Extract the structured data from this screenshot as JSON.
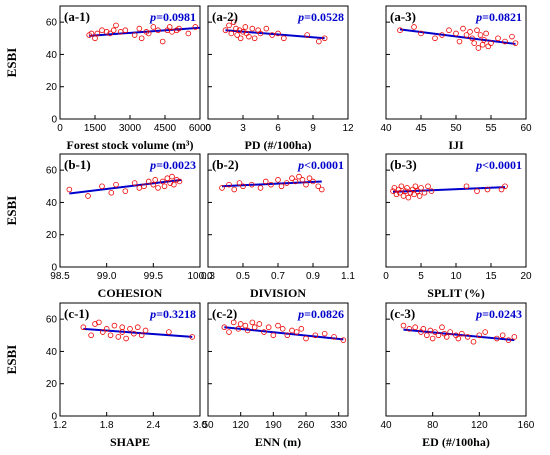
{
  "figure": {
    "y_axis_label": "ESBI",
    "colors": {
      "points": "#ee0000",
      "line": "#0000cc",
      "pvalue": "#0000cc",
      "axis": "#000000"
    }
  },
  "chart_data": [
    {
      "id": "a1",
      "panel_label": "(a-1)",
      "p_prefix": "p",
      "p_value": "=0.0981",
      "type": "scatter",
      "xlabel": "Forest stock volume (m³)",
      "ylabel": "ESBI",
      "xlim": [
        0,
        6000
      ],
      "x_ticks": [
        0,
        1500,
        3000,
        4500,
        6000
      ],
      "x_tick_labels": [
        "0",
        "1500",
        "3000",
        "4500",
        "6000"
      ],
      "ylim": [
        0,
        70
      ],
      "y_ticks": [
        0,
        20,
        40,
        60
      ],
      "y_tick_labels": [
        "0",
        "20",
        "40",
        "60"
      ],
      "points": [
        [
          1250,
          52
        ],
        [
          1350,
          53
        ],
        [
          1500,
          50
        ],
        [
          1600,
          53
        ],
        [
          1800,
          55
        ],
        [
          2000,
          54
        ],
        [
          2150,
          53
        ],
        [
          2300,
          55
        ],
        [
          2400,
          58
        ],
        [
          2600,
          54
        ],
        [
          2800,
          55
        ],
        [
          3200,
          52
        ],
        [
          3400,
          56
        ],
        [
          3500,
          50
        ],
        [
          3700,
          54
        ],
        [
          3800,
          53
        ],
        [
          4000,
          57
        ],
        [
          4200,
          55
        ],
        [
          4400,
          48
        ],
        [
          4600,
          55
        ],
        [
          4700,
          57
        ],
        [
          4800,
          54
        ],
        [
          5000,
          55
        ],
        [
          5100,
          56
        ],
        [
          5500,
          53
        ],
        [
          5800,
          57
        ]
      ],
      "fit": [
        [
          1250,
          51.5
        ],
        [
          6000,
          56.5
        ]
      ]
    },
    {
      "id": "a2",
      "panel_label": "(a-2)",
      "p_prefix": "p",
      "p_value": "=0.0528",
      "type": "scatter",
      "xlabel": "PD (#/100ha)",
      "ylabel": "ESBI",
      "xlim": [
        0,
        12
      ],
      "x_ticks": [
        0,
        3,
        6,
        9,
        12
      ],
      "x_tick_labels": [
        "0",
        "3",
        "6",
        "9",
        "12"
      ],
      "ylim": [
        0,
        70
      ],
      "y_ticks": [
        0,
        20,
        40,
        60
      ],
      "y_tick_labels": [
        "0",
        "20",
        "40",
        "60"
      ],
      "points": [
        [
          1.5,
          55
        ],
        [
          1.8,
          58
        ],
        [
          2.0,
          53
        ],
        [
          2.2,
          60
        ],
        [
          2.4,
          56
        ],
        [
          2.5,
          52
        ],
        [
          2.7,
          55
        ],
        [
          2.8,
          50
        ],
        [
          3.0,
          54
        ],
        [
          3.2,
          57
        ],
        [
          3.3,
          53
        ],
        [
          3.5,
          51
        ],
        [
          3.8,
          56
        ],
        [
          4.0,
          50
        ],
        [
          4.3,
          55
        ],
        [
          4.5,
          53
        ],
        [
          5.0,
          56
        ],
        [
          5.5,
          52
        ],
        [
          6.0,
          53
        ],
        [
          6.5,
          50
        ],
        [
          8.5,
          52
        ],
        [
          9.5,
          48
        ],
        [
          10.0,
          50
        ]
      ],
      "fit": [
        [
          1.5,
          55
        ],
        [
          10.0,
          50
        ]
      ]
    },
    {
      "id": "a3",
      "panel_label": "(a-3)",
      "p_prefix": "p",
      "p_value": "=0.0821",
      "type": "scatter",
      "xlabel": "IJI",
      "ylabel": "ESBI",
      "xlim": [
        40,
        60
      ],
      "x_ticks": [
        40,
        45,
        50,
        55,
        60
      ],
      "x_tick_labels": [
        "40",
        "45",
        "50",
        "55",
        "60"
      ],
      "ylim": [
        0,
        70
      ],
      "y_ticks": [
        0,
        20,
        40,
        60
      ],
      "y_tick_labels": [
        "0",
        "20",
        "40",
        "60"
      ],
      "points": [
        [
          42,
          55
        ],
        [
          44,
          57
        ],
        [
          45,
          53
        ],
        [
          47,
          50
        ],
        [
          48,
          52
        ],
        [
          49,
          55
        ],
        [
          50,
          53
        ],
        [
          50.5,
          48
        ],
        [
          51,
          56
        ],
        [
          51.5,
          52
        ],
        [
          52,
          54
        ],
        [
          52.3,
          50
        ],
        [
          52.6,
          47
        ],
        [
          53,
          55
        ],
        [
          53.2,
          44
        ],
        [
          53.5,
          52
        ],
        [
          53.8,
          46
        ],
        [
          54,
          49
        ],
        [
          54.3,
          53
        ],
        [
          54.6,
          45
        ],
        [
          55,
          47
        ],
        [
          56,
          50
        ],
        [
          57,
          48
        ],
        [
          58,
          51
        ],
        [
          58.5,
          47
        ]
      ],
      "fit": [
        [
          42,
          55.5
        ],
        [
          58.5,
          46.5
        ]
      ]
    },
    {
      "id": "b1",
      "panel_label": "(b-1)",
      "p_prefix": "p",
      "p_value": "=0.0023",
      "type": "scatter",
      "xlabel": "COHESION",
      "ylabel": "ESBI",
      "xlim": [
        98.5,
        100
      ],
      "x_ticks": [
        98.5,
        99.0,
        99.5,
        100.0
      ],
      "x_tick_labels": [
        "98.5",
        "99.0",
        "99.5",
        "100.0"
      ],
      "ylim": [
        0,
        70
      ],
      "y_ticks": [
        0,
        20,
        40,
        60
      ],
      "y_tick_labels": [
        "0",
        "20",
        "40",
        "60"
      ],
      "points": [
        [
          98.6,
          48
        ],
        [
          98.8,
          44
        ],
        [
          98.95,
          50
        ],
        [
          99.05,
          46
        ],
        [
          99.1,
          51
        ],
        [
          99.2,
          47
        ],
        [
          99.3,
          52
        ],
        [
          99.35,
          49
        ],
        [
          99.4,
          50
        ],
        [
          99.45,
          53
        ],
        [
          99.5,
          51
        ],
        [
          99.52,
          54
        ],
        [
          99.55,
          49
        ],
        [
          99.6,
          53
        ],
        [
          99.62,
          50
        ],
        [
          99.65,
          55
        ],
        [
          99.68,
          52
        ],
        [
          99.7,
          56
        ],
        [
          99.72,
          51
        ],
        [
          99.75,
          54
        ],
        [
          99.78,
          53
        ]
      ],
      "fit": [
        [
          98.6,
          45.5
        ],
        [
          99.8,
          54
        ]
      ]
    },
    {
      "id": "b2",
      "panel_label": "(b-2)",
      "p_prefix": "p",
      "p_value": "<0.0001",
      "type": "scatter",
      "xlabel": "DIVISION",
      "ylabel": "ESBI",
      "xlim": [
        0.3,
        1.1
      ],
      "x_ticks": [
        0.3,
        0.5,
        0.7,
        0.9,
        1.1
      ],
      "x_tick_labels": [
        "0.3",
        "0.5",
        "0.7",
        "0.9",
        "1.1"
      ],
      "ylim": [
        0,
        70
      ],
      "y_ticks": [
        0,
        20,
        40,
        60
      ],
      "y_tick_labels": [
        "0",
        "20",
        "40",
        "60"
      ],
      "points": [
        [
          0.38,
          49
        ],
        [
          0.42,
          51
        ],
        [
          0.45,
          48
        ],
        [
          0.48,
          52
        ],
        [
          0.5,
          50
        ],
        [
          0.55,
          51
        ],
        [
          0.6,
          49
        ],
        [
          0.63,
          53
        ],
        [
          0.66,
          51
        ],
        [
          0.7,
          54
        ],
        [
          0.72,
          50
        ],
        [
          0.75,
          52
        ],
        [
          0.78,
          55
        ],
        [
          0.8,
          53
        ],
        [
          0.82,
          56
        ],
        [
          0.84,
          54
        ],
        [
          0.86,
          51
        ],
        [
          0.88,
          55
        ],
        [
          0.9,
          53
        ],
        [
          0.93,
          50
        ],
        [
          0.95,
          48
        ]
      ],
      "fit": [
        [
          0.38,
          50
        ],
        [
          0.95,
          53
        ]
      ]
    },
    {
      "id": "b3",
      "panel_label": "(b-3)",
      "p_prefix": "p",
      "p_value": "<0.0001",
      "type": "scatter",
      "xlabel": "SPLIT (%)",
      "ylabel": "ESBI",
      "xlim": [
        0,
        20
      ],
      "x_ticks": [
        0,
        5,
        10,
        15,
        20
      ],
      "x_tick_labels": [
        "0",
        "5",
        "10",
        "15",
        "20"
      ],
      "ylim": [
        0,
        70
      ],
      "y_ticks": [
        0,
        20,
        40,
        60
      ],
      "y_tick_labels": [
        "0",
        "20",
        "40",
        "60"
      ],
      "points": [
        [
          1.0,
          47
        ],
        [
          1.2,
          49
        ],
        [
          1.5,
          45
        ],
        [
          1.8,
          48
        ],
        [
          2.0,
          46
        ],
        [
          2.2,
          50
        ],
        [
          2.5,
          44
        ],
        [
          2.8,
          47
        ],
        [
          3.0,
          49
        ],
        [
          3.2,
          43
        ],
        [
          3.5,
          46
        ],
        [
          3.8,
          48
        ],
        [
          4.0,
          45
        ],
        [
          4.2,
          50
        ],
        [
          4.5,
          47
        ],
        [
          4.8,
          44
        ],
        [
          5.0,
          49
        ],
        [
          5.5,
          46
        ],
        [
          6.0,
          50
        ],
        [
          6.5,
          47
        ],
        [
          11.5,
          50
        ],
        [
          13.0,
          47
        ],
        [
          14.5,
          48
        ],
        [
          16.5,
          48
        ],
        [
          17.0,
          50
        ]
      ],
      "fit": [
        [
          1.0,
          46.5
        ],
        [
          17.0,
          49.5
        ]
      ]
    },
    {
      "id": "c1",
      "panel_label": "(c-1)",
      "p_prefix": "p",
      "p_value": "=0.3218",
      "type": "scatter",
      "xlabel": "SHAPE",
      "ylabel": "ESBI",
      "xlim": [
        1.2,
        3.0
      ],
      "x_ticks": [
        1.2,
        1.8,
        2.4,
        3.0
      ],
      "x_tick_labels": [
        "1.2",
        "1.8",
        "2.4",
        "3.0"
      ],
      "ylim": [
        0,
        70
      ],
      "y_ticks": [
        0,
        20,
        40,
        60
      ],
      "y_tick_labels": [
        "0",
        "20",
        "40",
        "60"
      ],
      "points": [
        [
          1.5,
          55
        ],
        [
          1.6,
          50
        ],
        [
          1.65,
          57
        ],
        [
          1.7,
          58
        ],
        [
          1.75,
          52
        ],
        [
          1.8,
          54
        ],
        [
          1.85,
          50
        ],
        [
          1.9,
          56
        ],
        [
          1.95,
          49
        ],
        [
          2.0,
          55
        ],
        [
          2.0,
          52
        ],
        [
          2.05,
          48
        ],
        [
          2.1,
          54
        ],
        [
          2.15,
          51
        ],
        [
          2.2,
          55
        ],
        [
          2.25,
          50
        ],
        [
          2.3,
          53
        ],
        [
          2.6,
          52
        ],
        [
          2.9,
          49
        ]
      ],
      "fit": [
        [
          1.5,
          54
        ],
        [
          2.9,
          49
        ]
      ]
    },
    {
      "id": "c2",
      "panel_label": "(c-2)",
      "p_prefix": "p",
      "p_value": "=0.0826",
      "type": "scatter",
      "xlabel": "ENN (m)",
      "ylabel": "ESBI",
      "xlim": [
        50,
        350
      ],
      "x_ticks": [
        50,
        120,
        190,
        260,
        330
      ],
      "x_tick_labels": [
        "50",
        "120",
        "190",
        "260",
        "330"
      ],
      "ylim": [
        0,
        70
      ],
      "y_ticks": [
        0,
        20,
        40,
        60
      ],
      "y_tick_labels": [
        "0",
        "20",
        "40",
        "60"
      ],
      "points": [
        [
          85,
          55
        ],
        [
          95,
          52
        ],
        [
          105,
          58
        ],
        [
          115,
          54
        ],
        [
          120,
          57
        ],
        [
          130,
          56
        ],
        [
          135,
          53
        ],
        [
          145,
          58
        ],
        [
          150,
          55
        ],
        [
          160,
          57
        ],
        [
          170,
          52
        ],
        [
          180,
          55
        ],
        [
          190,
          50
        ],
        [
          200,
          56
        ],
        [
          210,
          54
        ],
        [
          220,
          50
        ],
        [
          230,
          53
        ],
        [
          240,
          52
        ],
        [
          250,
          54
        ],
        [
          260,
          48
        ],
        [
          280,
          50
        ],
        [
          300,
          51
        ],
        [
          320,
          49
        ],
        [
          340,
          47
        ]
      ],
      "fit": [
        [
          85,
          55
        ],
        [
          340,
          47.5
        ]
      ]
    },
    {
      "id": "c3",
      "panel_label": "(c-3)",
      "p_prefix": "p",
      "p_value": "=0.0243",
      "type": "scatter",
      "xlabel": "ED (#/100ha)",
      "ylabel": "ESBI",
      "xlim": [
        40,
        160
      ],
      "x_ticks": [
        40,
        80,
        120,
        160
      ],
      "x_tick_labels": [
        "40",
        "80",
        "120",
        "160"
      ],
      "ylim": [
        0,
        70
      ],
      "y_ticks": [
        0,
        20,
        40,
        60
      ],
      "y_tick_labels": [
        "0",
        "20",
        "40",
        "60"
      ],
      "points": [
        [
          55,
          56
        ],
        [
          60,
          54
        ],
        [
          65,
          55
        ],
        [
          70,
          52
        ],
        [
          72,
          54
        ],
        [
          75,
          50
        ],
        [
          78,
          53
        ],
        [
          80,
          48
        ],
        [
          82,
          52
        ],
        [
          85,
          50
        ],
        [
          88,
          55
        ],
        [
          90,
          51
        ],
        [
          92,
          49
        ],
        [
          95,
          52
        ],
        [
          100,
          50
        ],
        [
          102,
          48
        ],
        [
          105,
          51
        ],
        [
          110,
          49
        ],
        [
          115,
          46
        ],
        [
          120,
          50
        ],
        [
          125,
          52
        ],
        [
          135,
          48
        ],
        [
          140,
          50
        ],
        [
          145,
          47
        ],
        [
          150,
          49
        ]
      ],
      "fit": [
        [
          55,
          53.5
        ],
        [
          150,
          47
        ]
      ]
    }
  ]
}
